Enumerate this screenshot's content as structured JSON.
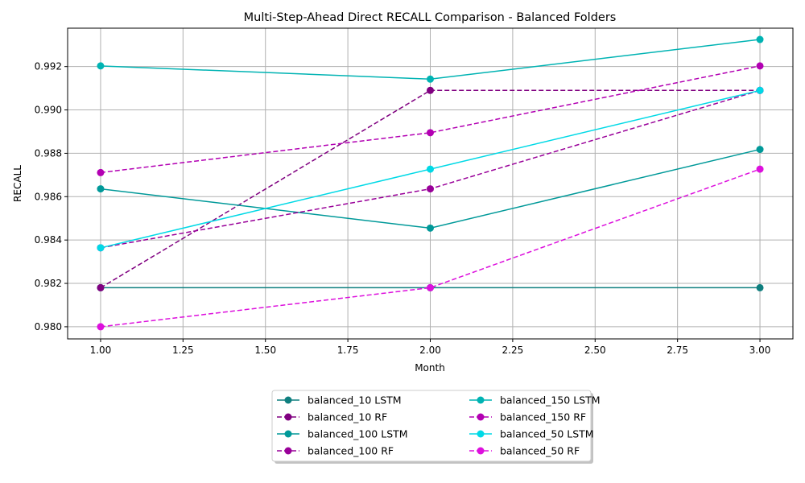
{
  "chart_data": {
    "type": "line",
    "title": "Multi-Step-Ahead Direct RECALL Comparison - Balanced Folders",
    "xlabel": "Month",
    "ylabel": "RECALL",
    "x": [
      1,
      2,
      3
    ],
    "xlim": [
      0.9,
      3.1
    ],
    "ylim": [
      0.97944,
      0.99377
    ],
    "xticks": [
      1.0,
      1.25,
      1.5,
      1.75,
      2.0,
      2.25,
      2.5,
      2.75,
      3.0
    ],
    "xtick_labels": [
      "1.00",
      "1.25",
      "1.50",
      "1.75",
      "2.00",
      "2.25",
      "2.50",
      "2.75",
      "3.00"
    ],
    "yticks": [
      0.98,
      0.982,
      0.984,
      0.986,
      0.988,
      0.99,
      0.992
    ],
    "ytick_labels": [
      "0.980",
      "0.982",
      "0.984",
      "0.986",
      "0.988",
      "0.990",
      "0.992"
    ],
    "grid": true,
    "legend_position": "bottom-center",
    "legend_columns": 2,
    "series": [
      {
        "name": "balanced_10 LSTM",
        "values": [
          0.9818,
          0.9818,
          0.9818
        ],
        "color": "#0f7f7f",
        "style": "solid"
      },
      {
        "name": "balanced_10 RF",
        "values": [
          0.9818,
          0.9909,
          0.9909
        ],
        "color": "#800080",
        "style": "dashed"
      },
      {
        "name": "balanced_100 LSTM",
        "values": [
          0.98636,
          0.98455,
          0.98818
        ],
        "color": "#009999",
        "style": "solid"
      },
      {
        "name": "balanced_100 RF",
        "values": [
          0.98364,
          0.98636,
          0.9909
        ],
        "color": "#990099",
        "style": "dashed"
      },
      {
        "name": "balanced_150 LSTM",
        "values": [
          0.99203,
          0.99142,
          0.99325
        ],
        "color": "#00b3b3",
        "style": "solid"
      },
      {
        "name": "balanced_150 RF",
        "values": [
          0.98711,
          0.98895,
          0.99203
        ],
        "color": "#b300b3",
        "style": "dashed"
      },
      {
        "name": "balanced_50 LSTM",
        "values": [
          0.98364,
          0.98727,
          0.9909
        ],
        "color": "#00d9e6",
        "style": "solid"
      },
      {
        "name": "balanced_50 RF",
        "values": [
          0.98,
          0.9818,
          0.98727
        ],
        "color": "#dd10dd",
        "style": "dashed"
      }
    ]
  }
}
